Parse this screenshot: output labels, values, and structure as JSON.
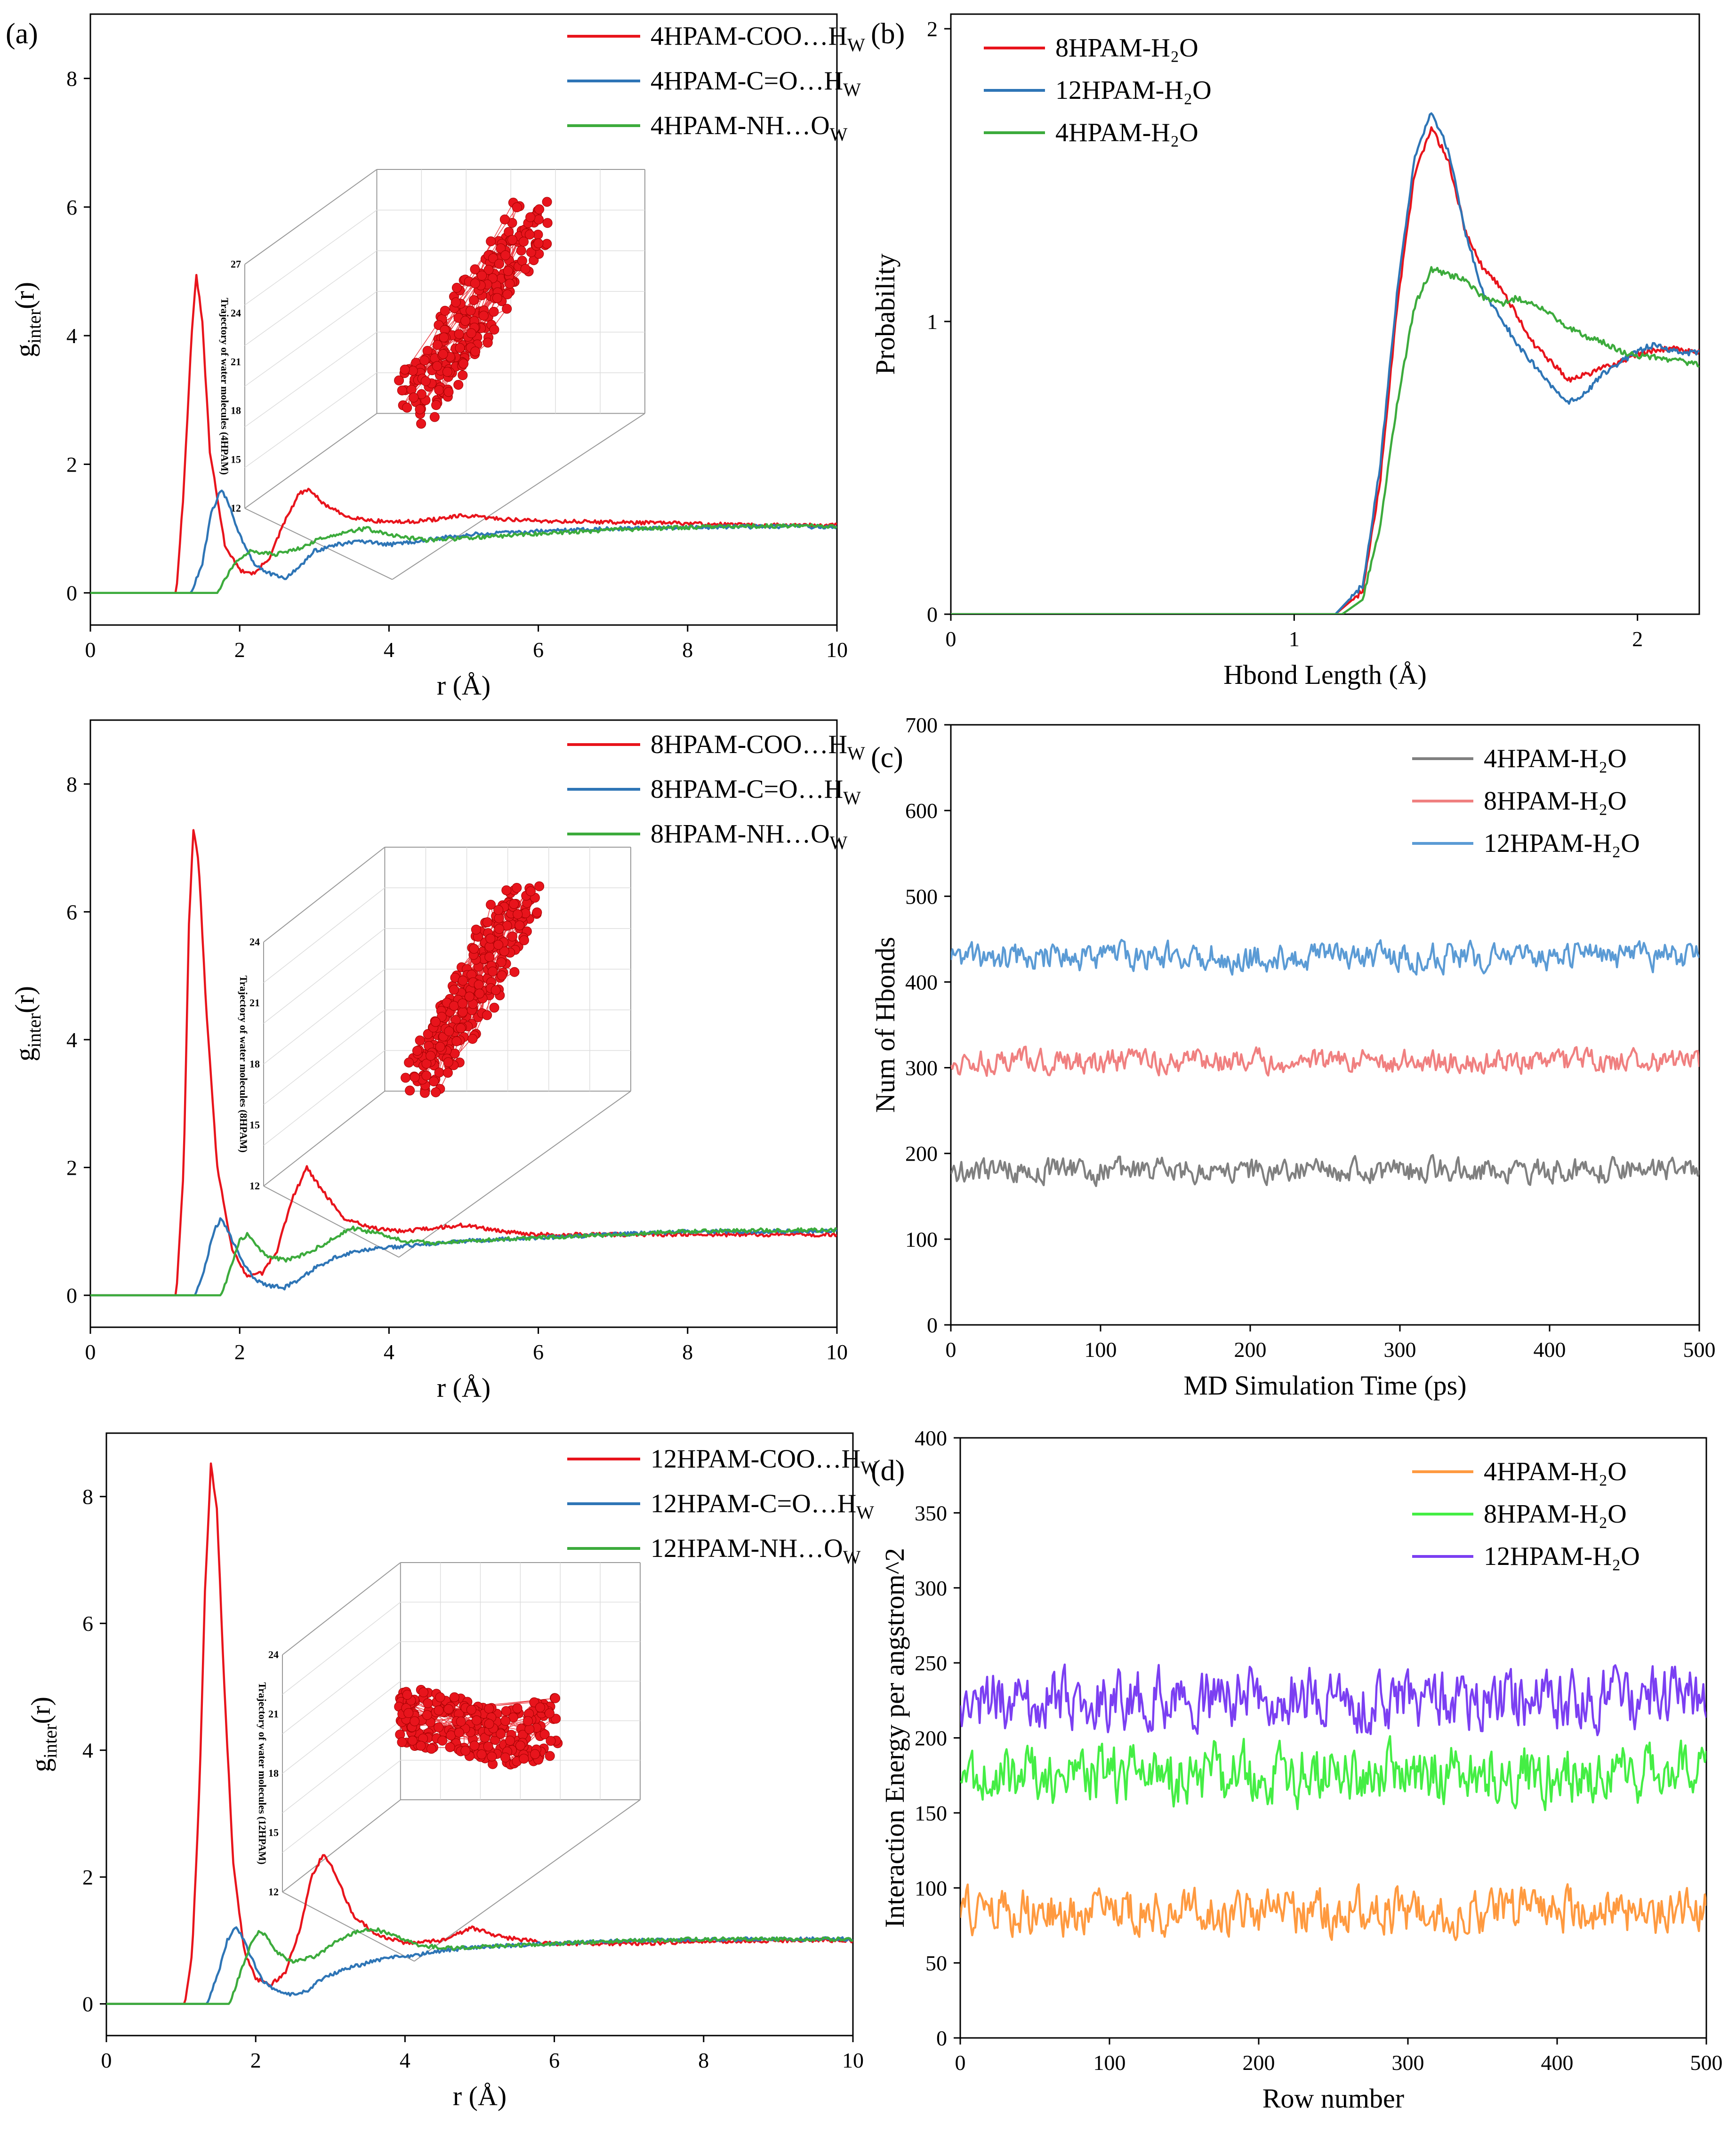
{
  "chart_data": [
    {
      "id": "a1",
      "panel_label": "(a)",
      "type": "line",
      "xlabel": "r (Å)",
      "ylabel_main": "g",
      "ylabel_sub": "inter",
      "ylabel_tail": "(r)",
      "xlim": [
        0,
        10
      ],
      "ylim": [
        -0.5,
        9
      ],
      "xticks": [
        0,
        2,
        4,
        6,
        8,
        10
      ],
      "yticks": [
        0,
        2,
        4,
        6,
        8
      ],
      "legend_position": "top-right",
      "inset": {
        "label": "Trajectory of water molecules (4HPAM)",
        "zticks": [
          "12",
          "15",
          "18",
          "21",
          "24",
          "27"
        ],
        "color": "#e8141c",
        "cluster": "column"
      },
      "series": [
        {
          "name": "4HPAM-COO…H",
          "sub": "W",
          "color": "#e8141c",
          "x": [
            0,
            1.15,
            1.25,
            1.35,
            1.42,
            1.5,
            1.6,
            1.8,
            2.0,
            2.2,
            2.4,
            2.6,
            2.8,
            2.95,
            3.1,
            3.4,
            3.8,
            4.2,
            4.6,
            5.0,
            5.5,
            6.0,
            7.0,
            8.0,
            9.0,
            10.0
          ],
          "y": [
            0,
            0,
            1.6,
            3.9,
            4.95,
            4.2,
            2.2,
            0.75,
            0.35,
            0.3,
            0.55,
            1.1,
            1.55,
            1.6,
            1.4,
            1.2,
            1.12,
            1.1,
            1.14,
            1.2,
            1.15,
            1.12,
            1.1,
            1.08,
            1.05,
            1.05
          ]
        },
        {
          "name": "4HPAM-C=O…H",
          "sub": "W",
          "color": "#2e75b6",
          "x": [
            0,
            1.35,
            1.5,
            1.62,
            1.75,
            1.85,
            2.0,
            2.2,
            2.4,
            2.6,
            2.8,
            3.0,
            3.3,
            3.6,
            4.0,
            4.5,
            5.0,
            6.0,
            7.0,
            8.0,
            9.0,
            10.0
          ],
          "y": [
            0,
            0,
            0.45,
            1.25,
            1.6,
            1.4,
            0.9,
            0.45,
            0.3,
            0.22,
            0.4,
            0.65,
            0.75,
            0.8,
            0.75,
            0.82,
            0.9,
            0.96,
            1.0,
            1.02,
            1.03,
            1.03
          ]
        },
        {
          "name": "4HPAM-NH…O",
          "sub": "W",
          "color": "#3cab3c",
          "x": [
            0,
            1.7,
            1.85,
            2.0,
            2.15,
            2.3,
            2.5,
            2.8,
            3.1,
            3.4,
            3.7,
            4.0,
            4.5,
            5.0,
            6.0,
            7.0,
            8.0,
            9.0,
            10.0
          ],
          "y": [
            0,
            0,
            0.3,
            0.55,
            0.65,
            0.62,
            0.6,
            0.7,
            0.85,
            0.95,
            1.0,
            0.9,
            0.82,
            0.85,
            0.92,
            0.98,
            1.02,
            1.04,
            1.04
          ]
        }
      ]
    },
    {
      "id": "a2",
      "panel_label": "",
      "type": "line",
      "xlabel": "r (Å)",
      "ylabel_main": "g",
      "ylabel_sub": "inter",
      "ylabel_tail": "(r)",
      "xlim": [
        0,
        10
      ],
      "ylim": [
        -0.5,
        9
      ],
      "xticks": [
        0,
        2,
        4,
        6,
        8,
        10
      ],
      "yticks": [
        0,
        2,
        4,
        6,
        8
      ],
      "legend_position": "top-right",
      "inset": {
        "label": "Trajectory of water molecules (8HPAM)",
        "zticks": [
          "12",
          "15",
          "18",
          "21",
          "24"
        ],
        "color": "#e8141c",
        "cluster": "column"
      },
      "series": [
        {
          "name": "8HPAM-COO…H",
          "sub": "W",
          "color": "#e8141c",
          "x": [
            0,
            1.15,
            1.25,
            1.32,
            1.38,
            1.45,
            1.55,
            1.7,
            1.9,
            2.1,
            2.3,
            2.5,
            2.7,
            2.9,
            3.1,
            3.4,
            3.8,
            4.2,
            4.6,
            5.0,
            5.5,
            6.0,
            7.0,
            8.0,
            9.0,
            10.0
          ],
          "y": [
            0,
            0,
            2.0,
            5.8,
            7.3,
            6.8,
            4.5,
            2.0,
            0.7,
            0.3,
            0.35,
            0.7,
            1.5,
            2.0,
            1.65,
            1.2,
            1.05,
            1.0,
            1.05,
            1.1,
            1.0,
            0.95,
            0.95,
            0.95,
            0.95,
            0.95
          ]
        },
        {
          "name": "8HPAM-C=O…H",
          "sub": "W",
          "color": "#2e75b6",
          "x": [
            0,
            1.4,
            1.55,
            1.65,
            1.75,
            1.85,
            2.0,
            2.2,
            2.4,
            2.6,
            2.8,
            3.0,
            3.3,
            3.6,
            4.0,
            4.5,
            5.0,
            6.0,
            7.0,
            8.0,
            9.0,
            10.0
          ],
          "y": [
            0,
            0,
            0.5,
            1.0,
            1.2,
            1.0,
            0.6,
            0.25,
            0.15,
            0.12,
            0.25,
            0.42,
            0.6,
            0.7,
            0.75,
            0.8,
            0.85,
            0.9,
            0.95,
            1.0,
            1.0,
            1.0
          ]
        },
        {
          "name": "8HPAM-NH…O",
          "sub": "W",
          "color": "#3cab3c",
          "x": [
            0,
            1.75,
            1.9,
            2.0,
            2.1,
            2.2,
            2.35,
            2.6,
            2.9,
            3.2,
            3.5,
            3.8,
            4.2,
            4.6,
            5.0,
            6.0,
            7.0,
            8.0,
            9.0,
            10.0
          ],
          "y": [
            0,
            0,
            0.5,
            0.85,
            0.95,
            0.82,
            0.62,
            0.55,
            0.65,
            0.85,
            1.05,
            0.98,
            0.85,
            0.82,
            0.85,
            0.9,
            0.95,
            1.0,
            1.02,
            1.02
          ]
        }
      ]
    },
    {
      "id": "a3",
      "panel_label": "",
      "type": "line",
      "xlabel": "r (Å)",
      "ylabel_main": "g",
      "ylabel_sub": "inter",
      "ylabel_tail": "(r)",
      "xlim": [
        0,
        10
      ],
      "ylim": [
        -0.5,
        9
      ],
      "xticks": [
        0,
        2,
        4,
        6,
        8,
        10
      ],
      "yticks": [
        0,
        2,
        4,
        6,
        8
      ],
      "legend_position": "top-right",
      "inset": {
        "label": "Trajectory of water molecules (12HPAM)",
        "zticks": [
          "12",
          "15",
          "18",
          "21",
          "24"
        ],
        "color": "#e8141c",
        "cluster": "band"
      },
      "series": [
        {
          "name": "12HPAM-COO…H",
          "sub": "W",
          "color": "#e8141c",
          "x": [
            0,
            1.05,
            1.15,
            1.25,
            1.32,
            1.4,
            1.48,
            1.58,
            1.7,
            1.85,
            2.0,
            2.2,
            2.4,
            2.6,
            2.75,
            2.9,
            3.05,
            3.3,
            3.6,
            4.0,
            4.5,
            4.9,
            5.3,
            6.0,
            7.0,
            8.0,
            9.0,
            10.0
          ],
          "y": [
            0,
            0,
            0.8,
            3.5,
            6.5,
            8.5,
            7.8,
            5.0,
            2.2,
            0.8,
            0.4,
            0.3,
            0.5,
            1.2,
            2.0,
            2.35,
            2.1,
            1.4,
            1.1,
            0.95,
            1.0,
            1.2,
            1.05,
            0.95,
            0.95,
            0.98,
            1.0,
            1.0
          ]
        },
        {
          "name": "12HPAM-C=O…H",
          "sub": "W",
          "color": "#2e75b6",
          "x": [
            0,
            1.35,
            1.5,
            1.62,
            1.72,
            1.82,
            1.95,
            2.1,
            2.3,
            2.5,
            2.7,
            2.9,
            3.2,
            3.5,
            3.8,
            4.2,
            4.6,
            5.0,
            6.0,
            7.0,
            8.0,
            9.0,
            10.0
          ],
          "y": [
            0,
            0,
            0.5,
            1.0,
            1.22,
            1.05,
            0.7,
            0.35,
            0.18,
            0.15,
            0.22,
            0.4,
            0.55,
            0.65,
            0.72,
            0.78,
            0.85,
            0.9,
            0.95,
            1.0,
            1.02,
            1.02,
            1.02
          ]
        },
        {
          "name": "12HPAM-NH…O",
          "sub": "W",
          "color": "#3cab3c",
          "x": [
            0,
            1.65,
            1.8,
            1.95,
            2.05,
            2.15,
            2.3,
            2.5,
            2.8,
            3.1,
            3.4,
            3.6,
            3.9,
            4.2,
            4.6,
            5.0,
            6.0,
            7.0,
            8.0,
            9.0,
            10.0
          ],
          "y": [
            0,
            0,
            0.5,
            1.0,
            1.15,
            1.05,
            0.8,
            0.65,
            0.75,
            1.0,
            1.15,
            1.18,
            1.05,
            0.92,
            0.88,
            0.9,
            0.95,
            1.0,
            1.02,
            1.02,
            1.02
          ]
        }
      ]
    },
    {
      "id": "b",
      "panel_label": "(b)",
      "type": "line",
      "xlabel": "Hbond Length (Å)",
      "ylabel": "Probability",
      "xlim": [
        0,
        2.18
      ],
      "ylim": [
        0,
        2.05
      ],
      "xticks": [
        0,
        1,
        2
      ],
      "yticks": [
        0,
        1,
        2
      ],
      "legend_position": "top-left",
      "series": [
        {
          "name": "8HPAM-H₂O",
          "color": "#e8141c",
          "x": [
            0,
            1.12,
            1.2,
            1.25,
            1.3,
            1.35,
            1.4,
            1.45,
            1.5,
            1.55,
            1.6,
            1.65,
            1.7,
            1.75,
            1.8,
            1.85,
            1.9,
            1.95,
            2.0,
            2.05,
            2.1,
            2.15,
            2.18
          ],
          "y": [
            0,
            0,
            0.08,
            0.45,
            1.05,
            1.5,
            1.66,
            1.55,
            1.3,
            1.18,
            1.12,
            1.02,
            0.92,
            0.86,
            0.8,
            0.82,
            0.84,
            0.86,
            0.89,
            0.9,
            0.91,
            0.9,
            0.9
          ]
        },
        {
          "name": "12HPAM-H₂O",
          "color": "#2e75b6",
          "x": [
            0,
            1.12,
            1.2,
            1.25,
            1.3,
            1.35,
            1.4,
            1.45,
            1.5,
            1.55,
            1.6,
            1.65,
            1.7,
            1.75,
            1.8,
            1.85,
            1.9,
            1.95,
            2.0,
            2.05,
            2.1,
            2.15,
            2.18
          ],
          "y": [
            0,
            0,
            0.1,
            0.5,
            1.1,
            1.55,
            1.72,
            1.58,
            1.3,
            1.1,
            1.02,
            0.92,
            0.85,
            0.78,
            0.72,
            0.76,
            0.82,
            0.86,
            0.9,
            0.92,
            0.9,
            0.89,
            0.9
          ]
        },
        {
          "name": "4HPAM-H₂O",
          "color": "#3cab3c",
          "x": [
            0,
            1.14,
            1.2,
            1.25,
            1.3,
            1.35,
            1.4,
            1.45,
            1.5,
            1.55,
            1.6,
            1.65,
            1.7,
            1.75,
            1.8,
            1.85,
            1.9,
            1.95,
            2.0,
            2.05,
            2.1,
            2.15,
            2.18
          ],
          "y": [
            0,
            0,
            0.05,
            0.3,
            0.72,
            1.05,
            1.18,
            1.16,
            1.14,
            1.08,
            1.06,
            1.08,
            1.06,
            1.02,
            0.98,
            0.95,
            0.93,
            0.9,
            0.88,
            0.88,
            0.87,
            0.86,
            0.85
          ]
        }
      ]
    },
    {
      "id": "c",
      "panel_label": "(c)",
      "type": "line",
      "xlabel": "MD Simulation Time (ps)",
      "ylabel": "Num of Hbonds",
      "xlim": [
        0,
        500
      ],
      "ylim": [
        0,
        700
      ],
      "xticks": [
        0,
        100,
        200,
        300,
        400,
        500
      ],
      "yticks": [
        0,
        100,
        200,
        300,
        400,
        500,
        600,
        700
      ],
      "legend_position": "top-right",
      "series": [
        {
          "name": "4HPAM-H₂O",
          "color": "#808080",
          "mean": 180,
          "amplitude": 12
        },
        {
          "name": "8HPAM-H₂O",
          "color": "#f08080",
          "mean": 307,
          "amplitude": 12
        },
        {
          "name": "12HPAM-H₂O",
          "color": "#5b9bd5",
          "mean": 430,
          "amplitude": 14
        }
      ]
    },
    {
      "id": "d",
      "panel_label": "(d)",
      "type": "line",
      "xlabel": "Row number",
      "ylabel": "Interaction Energy per angstrom^2",
      "xlim": [
        0,
        500
      ],
      "ylim": [
        0,
        400
      ],
      "xticks": [
        0,
        100,
        200,
        300,
        400,
        500
      ],
      "yticks": [
        0,
        50,
        100,
        150,
        200,
        250,
        300,
        350,
        400
      ],
      "legend_position": "top-right",
      "series": [
        {
          "name": "4HPAM-H₂O",
          "color": "#ff9a40",
          "mean": 84,
          "amplitude": 13
        },
        {
          "name": "8HPAM-H₂O",
          "color": "#44ee44",
          "mean": 176,
          "amplitude": 17
        },
        {
          "name": "12HPAM-H₂O",
          "color": "#7b3ff2",
          "mean": 226,
          "amplitude": 17
        }
      ]
    }
  ]
}
